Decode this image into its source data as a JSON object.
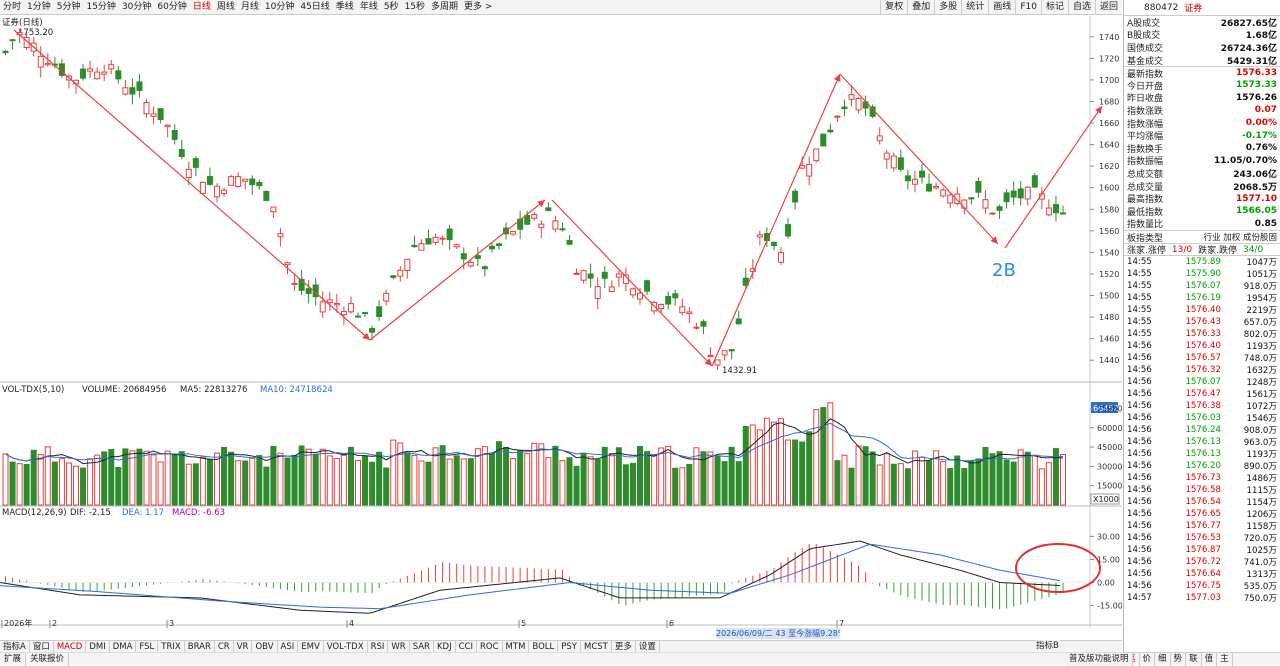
{
  "toolbar": {
    "periods": [
      {
        "label": "分时",
        "active": false
      },
      {
        "label": "1分钟",
        "active": false
      },
      {
        "label": "5分钟",
        "active": false
      },
      {
        "label": "15分钟",
        "active": false
      },
      {
        "label": "30分钟",
        "active": false
      },
      {
        "label": "60分钟",
        "active": false
      },
      {
        "label": "日线",
        "active": true
      },
      {
        "label": "周线",
        "active": false
      },
      {
        "label": "月线",
        "active": false
      },
      {
        "label": "10分钟",
        "active": false
      },
      {
        "label": "45日线",
        "active": false
      },
      {
        "label": "季线",
        "active": false
      },
      {
        "label": "年线",
        "active": false
      },
      {
        "label": "5秒",
        "active": false
      },
      {
        "label": "15秒",
        "active": false
      },
      {
        "label": "多周期",
        "active": false
      },
      {
        "label": "更多 >",
        "active": false
      }
    ],
    "tools": [
      "复权",
      "叠加",
      "多股",
      "统计",
      "画线",
      "F10",
      "标记",
      "自选",
      "返回"
    ]
  },
  "main_chart": {
    "title": "证券(日线)",
    "high_label": "1753.20",
    "low_label": "1432.91",
    "annotation": "2B",
    "y_ticks": [
      1440,
      1460,
      1480,
      1500,
      1520,
      1540,
      1560,
      1580,
      1600,
      1620,
      1640,
      1660,
      1680,
      1700,
      1720,
      1740
    ]
  },
  "volume_chart": {
    "label": "VOL-TDX(5,10)",
    "volume_label": "VOLUME: 20684956",
    "ma5_label": "MA5: 22813276",
    "ma10_label": "MA10: 24718624",
    "current_badge": "66452",
    "unit": "X1000",
    "y_ticks": [
      15000,
      30000,
      45000,
      60000,
      75000
    ]
  },
  "macd_chart": {
    "label": "MACD(12,26,9)",
    "dif_label": "DIF: -2.15",
    "dea_label": "DEA: 1.17",
    "macd_label": "MACD: -6.63",
    "y_ticks": [
      "30.00",
      "15.00",
      "0.00",
      "-15.00"
    ]
  },
  "x_axis": {
    "labels": [
      {
        "t": "2026年"
      },
      {
        "t": "2"
      },
      {
        "t": "3"
      },
      {
        "t": "4"
      },
      {
        "t": "5"
      },
      {
        "t": "6"
      },
      {
        "t": "7"
      }
    ],
    "status_text": "2026/06/09/二 43 至今涨幅9.28%"
  },
  "bottom_tabs": [
    "指标A",
    "窗口",
    "MACD",
    "DMI",
    "DMA",
    "FSL",
    "TRIX",
    "BRAR",
    "CR",
    "VR",
    "OBV",
    "ASI",
    "EMV",
    "VOL-TDX",
    "RSI",
    "WR",
    "SAR",
    "KDJ",
    "CCI",
    "ROC",
    "MTM",
    "BOLL",
    "PSY",
    "MCST",
    "更多",
    "设置"
  ],
  "bottom_active": "MACD",
  "bottom_right_tab": "指标B",
  "bottom_bar2": [
    "扩展",
    "关联报价"
  ],
  "panel": {
    "code": "880472",
    "name": "证券",
    "stats": [
      {
        "label": "A股成交",
        "value": "26827.65亿",
        "color": "blk"
      },
      {
        "label": "B股成交",
        "value": "1.68亿",
        "color": "blk"
      },
      {
        "label": "国债成交",
        "value": "26724.36亿",
        "color": "blk"
      },
      {
        "label": "基金成交",
        "value": "5429.31亿",
        "color": "blk"
      },
      {
        "label": "最新指数",
        "value": "1576.33",
        "color": "red"
      },
      {
        "label": "今日开盘",
        "value": "1573.33",
        "color": "green"
      },
      {
        "label": "昨日收盘",
        "value": "1576.26",
        "color": "blk"
      },
      {
        "label": "指数涨跌",
        "value": "0.07",
        "color": "red"
      },
      {
        "label": "指数涨幅",
        "value": "0.00%",
        "color": "red"
      },
      {
        "label": "平均涨幅",
        "value": "-0.17%",
        "color": "green"
      },
      {
        "label": "指数换手",
        "value": "0.76%",
        "color": "blk"
      },
      {
        "label": "指数振幅",
        "value": "11.05/0.70%",
        "color": "blk"
      },
      {
        "label": "总成交额",
        "value": "243.06亿",
        "color": "blk"
      },
      {
        "label": "总成交量",
        "value": "2068.5万",
        "color": "blk"
      },
      {
        "label": "最高指数",
        "value": "1577.10",
        "color": "red"
      },
      {
        "label": "最低指数",
        "value": "1566.05",
        "color": "green"
      },
      {
        "label": "指数量比",
        "value": "0.85",
        "color": "blk"
      }
    ],
    "bk_type_label": "板指类型",
    "bk_type_value": "行业 加权 成份股固",
    "limits_up_label": "涨家.涨停",
    "limits_up_value": "13/0",
    "limits_down_label": "跌家.跌停",
    "limits_down_value": "34/0",
    "trades": [
      {
        "t": "14:55",
        "p": "1575.89",
        "v": "1047万",
        "c": "green"
      },
      {
        "t": "14:55",
        "p": "1575.90",
        "v": "1051万",
        "c": "green"
      },
      {
        "t": "14:55",
        "p": "1576.07",
        "v": "918.0万",
        "c": "green"
      },
      {
        "t": "14:55",
        "p": "1576.19",
        "v": "1954万",
        "c": "green"
      },
      {
        "t": "14:55",
        "p": "1576.40",
        "v": "2219万",
        "c": "red"
      },
      {
        "t": "14:55",
        "p": "1576.43",
        "v": "657.0万",
        "c": "red"
      },
      {
        "t": "14:55",
        "p": "1576.33",
        "v": "802.0万",
        "c": "red"
      },
      {
        "t": "14:56",
        "p": "1576.40",
        "v": "1193万",
        "c": "red"
      },
      {
        "t": "14:56",
        "p": "1576.57",
        "v": "748.0万",
        "c": "red"
      },
      {
        "t": "14:56",
        "p": "1576.32",
        "v": "1632万",
        "c": "red"
      },
      {
        "t": "14:56",
        "p": "1576.07",
        "v": "1248万",
        "c": "green"
      },
      {
        "t": "14:56",
        "p": "1576.47",
        "v": "1561万",
        "c": "red"
      },
      {
        "t": "14:56",
        "p": "1576.38",
        "v": "1072万",
        "c": "red"
      },
      {
        "t": "14:56",
        "p": "1576.03",
        "v": "1546万",
        "c": "green"
      },
      {
        "t": "14:56",
        "p": "1576.24",
        "v": "908.0万",
        "c": "green"
      },
      {
        "t": "14:56",
        "p": "1576.13",
        "v": "963.0万",
        "c": "green"
      },
      {
        "t": "14:56",
        "p": "1576.13",
        "v": "1193万",
        "c": "green"
      },
      {
        "t": "14:56",
        "p": "1576.20",
        "v": "890.0万",
        "c": "green"
      },
      {
        "t": "14:56",
        "p": "1576.73",
        "v": "1486万",
        "c": "red"
      },
      {
        "t": "14:56",
        "p": "1576.58",
        "v": "1115万",
        "c": "red"
      },
      {
        "t": "14:56",
        "p": "1576.54",
        "v": "1154万",
        "c": "red"
      },
      {
        "t": "14:56",
        "p": "1576.65",
        "v": "1206万",
        "c": "red"
      },
      {
        "t": "14:56",
        "p": "1576.77",
        "v": "1158万",
        "c": "red"
      },
      {
        "t": "14:56",
        "p": "1576.53",
        "v": "720.0万",
        "c": "red"
      },
      {
        "t": "14:56",
        "p": "1576.87",
        "v": "1025万",
        "c": "red"
      },
      {
        "t": "14:56",
        "p": "1576.72",
        "v": "741.0万",
        "c": "red"
      },
      {
        "t": "14:56",
        "p": "1576.64",
        "v": "1313万",
        "c": "red"
      },
      {
        "t": "14:56",
        "p": "1576.75",
        "v": "535.0万",
        "c": "red"
      },
      {
        "t": "14:57",
        "p": "1577.03",
        "v": "750.0万",
        "c": "red"
      }
    ],
    "footer": [
      "笔",
      "价",
      "细",
      "势",
      "联",
      "值",
      "主"
    ],
    "footer_active": "笔",
    "footer_left": "普及版功能说明"
  },
  "colors": {
    "up": "#e84040",
    "down": "#2e8b2e",
    "arrow": "#e34545",
    "circle": "#e03030",
    "annot": "#2a8fd8",
    "dea": "#2a6fd8",
    "dif": "#222222"
  }
}
